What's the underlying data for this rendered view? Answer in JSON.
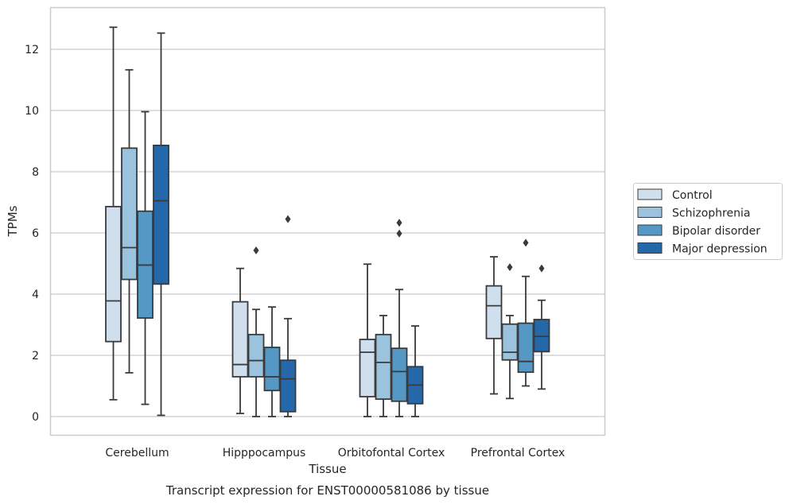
{
  "caption": "Transcript expression for ENST00000581086 by tissue",
  "chart_data": {
    "type": "box",
    "xlabel": "Tissue",
    "ylabel": "TPMs",
    "ylim": [
      -0.6,
      13.4
    ],
    "yticks": [
      0,
      2,
      4,
      6,
      8,
      10,
      12
    ],
    "grid": "horizontal",
    "legend_position": "right-center",
    "categories": [
      "Cerebellum",
      "Hipppocampus",
      "Orbitofontal Cortex",
      "Prefrontal Cortex"
    ],
    "series": [
      {
        "name": "Control",
        "color": "#cfdfee",
        "boxes": [
          {
            "whislo": 0.55,
            "q1": 2.45,
            "med": 3.78,
            "q3": 6.86,
            "whishi": 12.72,
            "fliers": []
          },
          {
            "whislo": 0.1,
            "q1": 1.3,
            "med": 1.7,
            "q3": 3.75,
            "whishi": 4.84,
            "fliers": []
          },
          {
            "whislo": 0.0,
            "q1": 0.65,
            "med": 2.1,
            "q3": 2.52,
            "whishi": 4.98,
            "fliers": []
          },
          {
            "whislo": 0.74,
            "q1": 2.55,
            "med": 3.62,
            "q3": 4.27,
            "whishi": 5.22,
            "fliers": []
          }
        ]
      },
      {
        "name": "Schizophrenia",
        "color": "#9bc3de",
        "boxes": [
          {
            "whislo": 1.43,
            "q1": 4.48,
            "med": 5.52,
            "q3": 8.77,
            "whishi": 11.33,
            "fliers": []
          },
          {
            "whislo": 0.0,
            "q1": 1.3,
            "med": 1.83,
            "q3": 2.68,
            "whishi": 3.5,
            "fliers": [
              5.43
            ]
          },
          {
            "whislo": 0.0,
            "q1": 0.57,
            "med": 1.77,
            "q3": 2.68,
            "whishi": 3.3,
            "fliers": []
          },
          {
            "whislo": 0.59,
            "q1": 1.85,
            "med": 2.1,
            "q3": 3.02,
            "whishi": 3.3,
            "fliers": [
              4.88
            ]
          }
        ]
      },
      {
        "name": "Bipolar disorder",
        "color": "#5598c6",
        "boxes": [
          {
            "whislo": 0.4,
            "q1": 3.22,
            "med": 4.95,
            "q3": 6.71,
            "whishi": 9.96,
            "fliers": []
          },
          {
            "whislo": 0.0,
            "q1": 0.85,
            "med": 1.3,
            "q3": 2.26,
            "whishi": 3.58,
            "fliers": []
          },
          {
            "whislo": 0.0,
            "q1": 0.5,
            "med": 1.47,
            "q3": 2.23,
            "whishi": 4.15,
            "fliers": [
              5.98,
              6.33
            ]
          },
          {
            "whislo": 1.0,
            "q1": 1.45,
            "med": 1.8,
            "q3": 3.05,
            "whishi": 4.58,
            "fliers": [
              5.68
            ]
          }
        ]
      },
      {
        "name": "Major depression",
        "color": "#2468a9",
        "boxes": [
          {
            "whislo": 0.04,
            "q1": 4.33,
            "med": 7.05,
            "q3": 8.86,
            "whishi": 12.53,
            "fliers": []
          },
          {
            "whislo": 0.0,
            "q1": 0.16,
            "med": 1.23,
            "q3": 1.84,
            "whishi": 3.2,
            "fliers": [
              6.45
            ]
          },
          {
            "whislo": 0.0,
            "q1": 0.42,
            "med": 1.03,
            "q3": 1.63,
            "whishi": 2.96,
            "fliers": []
          },
          {
            "whislo": 0.9,
            "q1": 2.12,
            "med": 2.62,
            "q3": 3.17,
            "whishi": 3.8,
            "fliers": [
              4.84
            ]
          }
        ]
      }
    ]
  }
}
